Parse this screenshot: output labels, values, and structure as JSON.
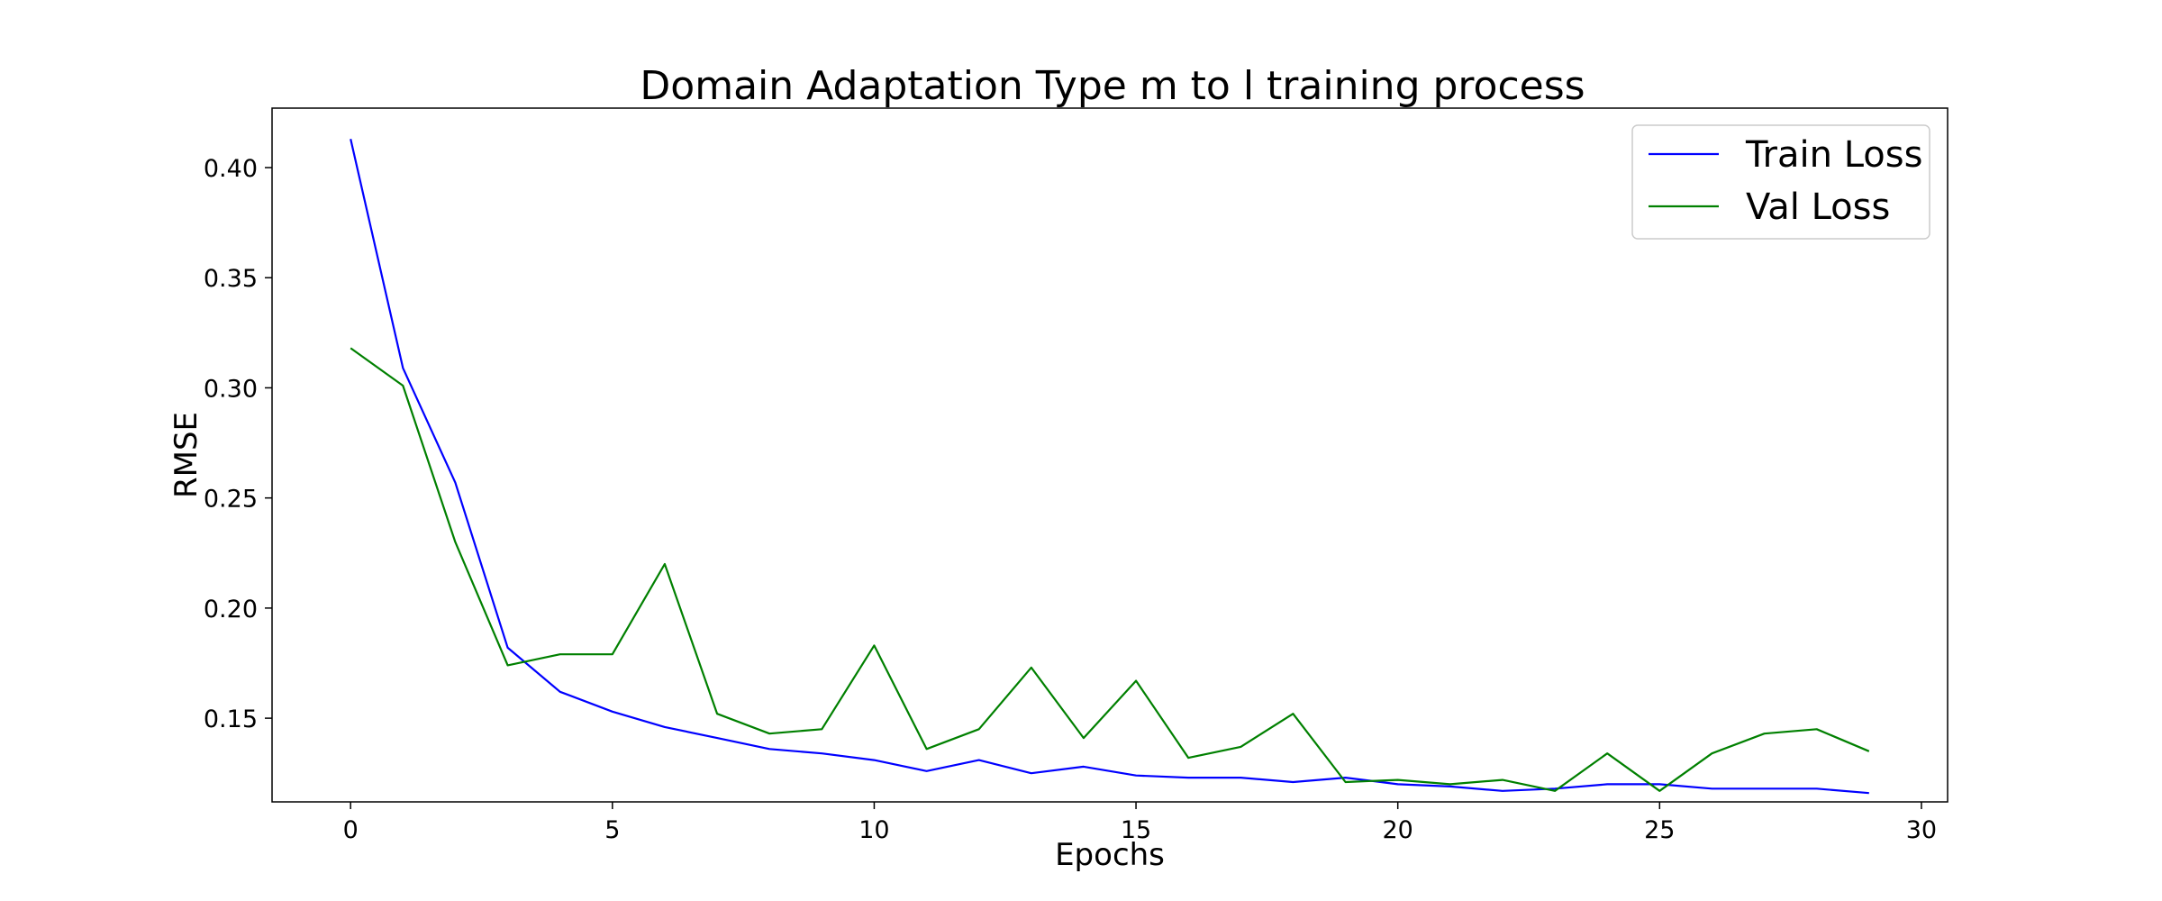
{
  "chart_data": {
    "type": "line",
    "title": "Domain Adaptation Type m to l training process",
    "xlabel": "Epochs",
    "ylabel": "RMSE",
    "xlim": [
      -1.5,
      30.5
    ],
    "ylim": [
      0.112,
      0.427
    ],
    "xticks": [
      0,
      5,
      10,
      15,
      20,
      25,
      30
    ],
    "yticks": [
      0.15,
      0.2,
      0.25,
      0.3,
      0.35,
      0.4
    ],
    "xtick_labels": [
      "0",
      "5",
      "10",
      "15",
      "20",
      "25",
      "30"
    ],
    "ytick_labels": [
      "0.15",
      "0.20",
      "0.25",
      "0.30",
      "0.35",
      "0.40"
    ],
    "grid": false,
    "legend_position": "top-right",
    "x": [
      0,
      1,
      2,
      3,
      4,
      5,
      6,
      7,
      8,
      9,
      10,
      11,
      12,
      13,
      14,
      15,
      16,
      17,
      18,
      19,
      20,
      21,
      22,
      23,
      24,
      25,
      26,
      27,
      28,
      29
    ],
    "series": [
      {
        "name": "Train Loss",
        "color": "#0000ff",
        "values": [
          0.413,
          0.309,
          0.257,
          0.182,
          0.162,
          0.153,
          0.146,
          0.141,
          0.136,
          0.134,
          0.131,
          0.126,
          0.131,
          0.125,
          0.128,
          0.124,
          0.123,
          0.123,
          0.121,
          0.123,
          0.12,
          0.119,
          0.117,
          0.118,
          0.12,
          0.12,
          0.118,
          0.118,
          0.118,
          0.116
        ]
      },
      {
        "name": "Val Loss",
        "color": "#008000",
        "values": [
          0.318,
          0.301,
          0.23,
          0.174,
          0.179,
          0.179,
          0.22,
          0.152,
          0.143,
          0.145,
          0.183,
          0.136,
          0.145,
          0.173,
          0.141,
          0.167,
          0.132,
          0.137,
          0.152,
          0.121,
          0.122,
          0.12,
          0.122,
          0.117,
          0.134,
          0.117,
          0.134,
          0.143,
          0.145,
          0.135
        ]
      }
    ]
  }
}
